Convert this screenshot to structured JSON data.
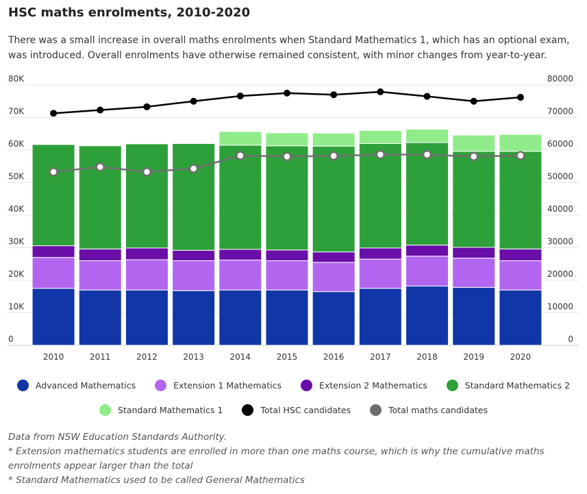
{
  "title": "HSC maths enrolments, 2010-2020",
  "subtitle": "There was a small increase in overall maths enrolments when Standard Mathematics 1, which has an optional exam, was introduced. Overall enrolments have otherwise remained consistent, with minor changes from year-to-year.",
  "notes": [
    "Data from NSW Education Standards Authority.",
    "* Extension mathematics students are enrolled in more than one maths course, which is why the cumulative maths enrolments appear larger than the total",
    "* Standard Mathematics used to be called General Mathematics"
  ],
  "colors": {
    "advanced": "#1136a8",
    "ext1": "#b266f0",
    "ext2": "#6a0ea8",
    "standard2": "#2ea03a",
    "standard1": "#90ec8a",
    "total_hsc": "#000000",
    "total_maths": "#6e6e6e"
  },
  "chart_data": {
    "type": "bar",
    "stacked": true,
    "categories": [
      "2010",
      "2011",
      "2012",
      "2013",
      "2014",
      "2015",
      "2016",
      "2017",
      "2018",
      "2019",
      "2020"
    ],
    "left_axis": {
      "ylim": [
        0,
        80000
      ],
      "ticks": [
        "0",
        "10K",
        "20K",
        "30K",
        "40K",
        "50K",
        "60K",
        "70K",
        "80K"
      ]
    },
    "right_axis": {
      "ylim": [
        0,
        80000
      ],
      "ticks": [
        "0",
        "10000",
        "20000",
        "30000",
        "40000",
        "50000",
        "60000",
        "70000",
        "80000"
      ]
    },
    "series": [
      {
        "key": "advanced",
        "name": "Advanced Mathematics",
        "values": [
          17500,
          17000,
          17000,
          16800,
          17000,
          17000,
          16500,
          17500,
          18200,
          17800,
          17000
        ]
      },
      {
        "key": "ext1",
        "name": "Extension 1 Mathematics",
        "values": [
          9500,
          9000,
          9300,
          9200,
          9200,
          9000,
          9000,
          9000,
          9200,
          9000,
          9000
        ]
      },
      {
        "key": "ext2",
        "name": "Extension 2 Mathematics",
        "values": [
          3600,
          3600,
          3600,
          3200,
          3300,
          3300,
          3200,
          3400,
          3400,
          3300,
          3600
        ]
      },
      {
        "key": "standard2",
        "name": "Standard Mathematics 2",
        "values": [
          31100,
          31700,
          32000,
          32800,
          32000,
          32000,
          32500,
          32100,
          31500,
          29500,
          30000
        ]
      },
      {
        "key": "standard1",
        "name": "Standard Mathematics 1",
        "values": [
          0,
          0,
          0,
          0,
          4200,
          4000,
          4000,
          4000,
          4100,
          5000,
          5200
        ]
      }
    ],
    "lines": [
      {
        "key": "total_hsc",
        "name": "Total HSC candidates",
        "values": [
          71300,
          72300,
          73300,
          75000,
          76600,
          77500,
          77000,
          77900,
          76500,
          75000,
          76200
        ]
      },
      {
        "key": "total_maths",
        "name": "Total maths candidates",
        "values": [
          53300,
          54800,
          53300,
          54300,
          58300,
          58000,
          58200,
          58600,
          58600,
          58000,
          58300
        ]
      }
    ],
    "legend_position": "bottom",
    "grid": true
  }
}
